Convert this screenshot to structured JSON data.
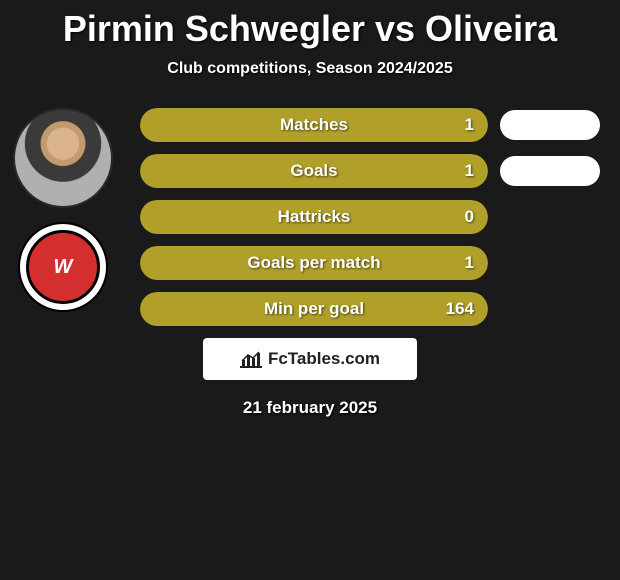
{
  "title": "Pirmin Schwegler vs Oliveira",
  "subtitle": "Club competitions, Season 2024/2025",
  "date": "21 february 2025",
  "brand": "FcTables.com",
  "colors": {
    "bar_fill": "#b0a02a",
    "bar_text": "#ffffff",
    "pill": "#ffffff",
    "club_red": "#d32f2f"
  },
  "club_initials": "W",
  "stats": [
    {
      "label": "Matches",
      "value": "1",
      "pill": true
    },
    {
      "label": "Goals",
      "value": "1",
      "pill": true
    },
    {
      "label": "Hattricks",
      "value": "0",
      "pill": false
    },
    {
      "label": "Goals per match",
      "value": "1",
      "pill": false
    },
    {
      "label": "Min per goal",
      "value": "164",
      "pill": false
    }
  ]
}
